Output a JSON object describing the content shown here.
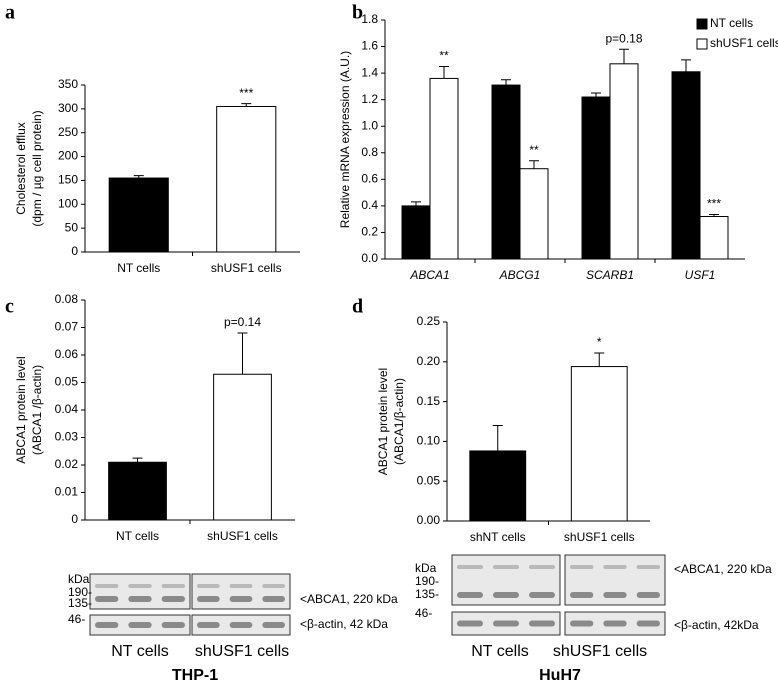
{
  "chart_data": [
    {
      "type": "bar",
      "panel": "a",
      "ylabel": [
        "Cholesterol efflux",
        "(dpm / µg cell protein)"
      ],
      "categories": [
        "NT cells",
        "shUSF1 cells"
      ],
      "values": [
        155,
        305
      ],
      "errors": [
        5,
        6
      ],
      "colors": [
        "#000000",
        "#ffffff"
      ],
      "annotations": [
        null,
        "***"
      ],
      "ylim": [
        0,
        350
      ],
      "yticks": [
        0,
        50,
        100,
        150,
        200,
        250,
        300,
        350
      ]
    },
    {
      "type": "bar",
      "panel": "b",
      "ylabel": [
        "Relative mRNA expression (A.U.)"
      ],
      "categories": [
        "ABCA1",
        "ABCG1",
        "SCARB1",
        "USF1"
      ],
      "category_style": "italic",
      "series": [
        {
          "name": "NT cells",
          "color": "#000000",
          "values": [
            0.4,
            1.31,
            1.22,
            1.41
          ],
          "errors": [
            0.03,
            0.04,
            0.03,
            0.09
          ]
        },
        {
          "name": "shUSF1 cells",
          "color": "#ffffff",
          "values": [
            1.36,
            0.68,
            1.47,
            0.32
          ],
          "errors": [
            0.09,
            0.06,
            0.11,
            0.015
          ],
          "annotations": [
            "**",
            "**",
            "p=0.18",
            "***"
          ]
        }
      ],
      "legend": "top-right",
      "ylim": [
        0,
        1.8
      ],
      "yticks": [
        {
          "value": 0,
          "label": "0.0"
        },
        0.2,
        0.4,
        0.6,
        0.8,
        {
          "value": 1,
          "label": "1.0"
        },
        1.2,
        1.4,
        1.6,
        1.8
      ]
    },
    {
      "type": "bar",
      "panel": "c",
      "ylabel": [
        "ABCA1 protein level",
        "(ABCA1 /β-actin)"
      ],
      "categories": [
        "NT cells",
        "shUSF1 cells"
      ],
      "values": [
        0.021,
        0.053
      ],
      "errors": [
        0.0015,
        0.015
      ],
      "colors": [
        "#000000",
        "#ffffff"
      ],
      "annotations": [
        null,
        "p=0.14"
      ],
      "ylim": [
        0,
        0.08
      ],
      "yticks": [
        0,
        0.01,
        0.02,
        0.03,
        0.04,
        0.05,
        0.06,
        0.07,
        0.08
      ]
    },
    {
      "type": "bar",
      "panel": "d",
      "ylabel": [
        "ABCA1 protein level",
        "(ABCA1/β-actin)"
      ],
      "categories": [
        "shNT cells",
        "shUSF1 cells"
      ],
      "values": [
        0.088,
        0.194
      ],
      "errors": [
        0.032,
        0.017
      ],
      "colors": [
        "#000000",
        "#ffffff"
      ],
      "annotations": [
        null,
        "*"
      ],
      "ylim": [
        0,
        0.25
      ],
      "yticks": [
        {
          "value": 0,
          "label": "0.00"
        },
        0.05,
        {
          "value": 0.1,
          "label": "0.10"
        },
        0.15,
        {
          "value": 0.2,
          "label": "0.20"
        },
        0.25
      ]
    }
  ],
  "blots": [
    {
      "markers": [
        "kDa",
        "190-",
        "135-",
        "46-"
      ],
      "bands": [
        "<ABCA1, 220 kDa",
        "<β-actin, 42 kDa"
      ],
      "groups": [
        "NT cells",
        "shUSF1 cells"
      ],
      "cell_line": "THP-1"
    },
    {
      "markers": [
        "kDa",
        "190-",
        "135-",
        "46-"
      ],
      "bands": [
        "<ABCA1, 220 kDa",
        "<β-actin, 42kDa"
      ],
      "groups": [
        "NT cells",
        "shUSF1 cells"
      ],
      "cell_line": "HuH7"
    }
  ]
}
